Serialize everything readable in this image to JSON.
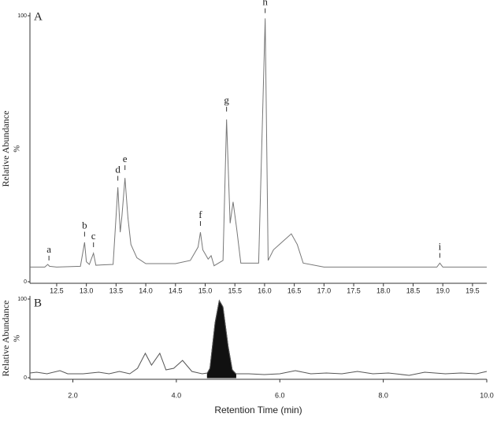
{
  "chart_data": [
    {
      "type": "line",
      "title": "A",
      "y_label": "Relative Abundance",
      "y_unit": "%",
      "color": "#777777",
      "xlim": [
        12.05,
        19.74
      ],
      "ylim": [
        0,
        100
      ],
      "xticks": [
        {
          "value": 12.5,
          "label": "12.5"
        },
        {
          "value": 13,
          "label": "13.0"
        },
        {
          "value": 13.5,
          "label": "13.5"
        },
        {
          "value": 14,
          "label": "14.0"
        },
        {
          "value": 14.5,
          "label": "14.5"
        },
        {
          "value": 15,
          "label": "15.0"
        },
        {
          "value": 15.5,
          "label": "15.5"
        },
        {
          "value": 16,
          "label": "16.0"
        },
        {
          "value": 16.5,
          "label": "16.5"
        },
        {
          "value": 17,
          "label": "17.0"
        },
        {
          "value": 17.5,
          "label": "17.5"
        },
        {
          "value": 18,
          "label": "18.0"
        },
        {
          "value": 18.5,
          "label": "18.5"
        },
        {
          "value": 19,
          "label": "19.0"
        },
        {
          "value": 19.5,
          "label": "19.5"
        }
      ],
      "yticks": [
        0,
        100
      ],
      "x": [
        12.05,
        12.3,
        12.35,
        12.38,
        12.5,
        12.9,
        12.97,
        13.0,
        13.05,
        13.12,
        13.16,
        13.45,
        13.53,
        13.57,
        13.6,
        13.65,
        13.7,
        13.75,
        13.85,
        14.0,
        14.5,
        14.75,
        14.88,
        14.92,
        14.96,
        15.05,
        15.1,
        15.15,
        15.3,
        15.36,
        15.42,
        15.47,
        15.53,
        15.6,
        15.9,
        16.01,
        16.06,
        16.15,
        16.3,
        16.45,
        16.55,
        16.65,
        17.0,
        18.9,
        18.95,
        19.0,
        19.74
      ],
      "values": [
        5.5,
        5.5,
        6.5,
        5.8,
        5.5,
        5.8,
        14.8,
        7.5,
        6.5,
        10.7,
        6.2,
        6.5,
        35.5,
        18.6,
        25,
        39,
        24,
        14,
        9,
        6.8,
        6.8,
        8,
        13,
        18.6,
        12,
        8.5,
        9.8,
        6,
        8,
        61,
        22,
        30,
        20,
        7,
        7,
        99,
        8,
        12,
        15,
        18,
        14,
        7,
        5.5,
        5.5,
        7,
        5.5,
        5.5
      ],
      "annotations": [
        {
          "label": "a",
          "x": 12.37,
          "y": 8
        },
        {
          "label": "b",
          "x": 12.97,
          "y": 17
        },
        {
          "label": "c",
          "x": 13.12,
          "y": 13
        },
        {
          "label": "d",
          "x": 13.53,
          "y": 38
        },
        {
          "label": "e",
          "x": 13.65,
          "y": 42
        },
        {
          "label": "f",
          "x": 14.92,
          "y": 21
        },
        {
          "label": "g",
          "x": 15.36,
          "y": 64
        },
        {
          "label": "h",
          "x": 16.01,
          "y": 101
        },
        {
          "label": "i",
          "x": 18.95,
          "y": 9
        }
      ]
    },
    {
      "type": "line",
      "title": "B",
      "y_label": "Relative Abundance",
      "y_unit": "%",
      "x_label": "Retention Time (min)",
      "color": "#555555",
      "xlim": [
        1.17,
        10.0
      ],
      "ylim": [
        0,
        100
      ],
      "xticks": [
        {
          "value": 2,
          "label": "2.0"
        },
        {
          "value": 4,
          "label": "4.0"
        },
        {
          "value": 6,
          "label": "6.0"
        },
        {
          "value": 8,
          "label": "8.0"
        },
        {
          "value": 10,
          "label": "10.0"
        }
      ],
      "yticks": [
        0,
        100
      ],
      "x": [
        1.17,
        1.3,
        1.5,
        1.75,
        1.9,
        2.2,
        2.5,
        2.7,
        2.9,
        3.1,
        3.25,
        3.4,
        3.52,
        3.68,
        3.8,
        3.95,
        4.12,
        4.3,
        4.5,
        4.6,
        4.65,
        4.75,
        4.83,
        4.9,
        5.0,
        5.08,
        5.15,
        5.4,
        5.7,
        6.0,
        6.3,
        6.6,
        6.9,
        7.2,
        7.5,
        7.8,
        8.1,
        8.5,
        8.8,
        9.2,
        9.5,
        9.8,
        10.0
      ],
      "values": [
        6,
        7,
        5,
        9,
        5,
        5,
        7,
        5,
        8,
        5,
        12,
        31,
        16,
        31,
        10,
        12,
        22,
        8,
        5,
        6,
        12,
        70,
        98,
        90,
        40,
        10,
        5,
        5,
        4,
        5,
        9,
        5,
        6,
        5,
        8,
        5,
        6,
        3,
        7,
        5,
        6,
        5,
        8
      ],
      "area": {
        "color": "#111111",
        "x": [
          4.6,
          4.65,
          4.75,
          4.83,
          4.9,
          5.0,
          5.08,
          5.15
        ],
        "values": [
          6,
          12,
          70,
          98,
          90,
          40,
          10,
          5
        ]
      }
    }
  ]
}
